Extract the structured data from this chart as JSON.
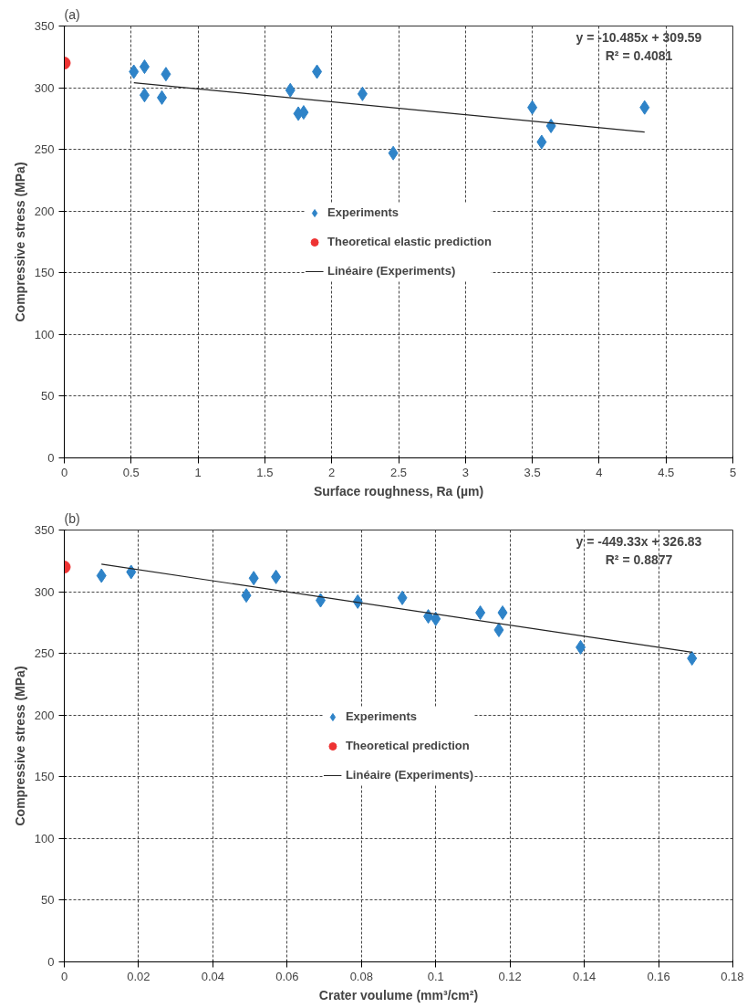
{
  "chart_data": [
    {
      "type": "scatter",
      "title": "(a)",
      "xlabel": "Surface roughness, Ra (µm)",
      "ylabel": "Compressive stress (MPa)",
      "xlim": [
        0,
        5
      ],
      "ylim": [
        0,
        350
      ],
      "xticks": [
        0,
        0.5,
        1,
        1.5,
        2,
        2.5,
        3,
        3.5,
        4,
        4.5,
        5
      ],
      "yticks": [
        0,
        50,
        100,
        150,
        200,
        250,
        300,
        350
      ],
      "grid": true,
      "legend": "center",
      "annotations": [
        "y = -10.485x + 309.59",
        "R² = 0.4081"
      ],
      "series": [
        {
          "name": "Experiments",
          "color": "#2e83c8",
          "marker": "diamond",
          "x": [
            0.52,
            0.6,
            0.6,
            0.73,
            0.76,
            1.69,
            1.75,
            1.79,
            1.89,
            2.23,
            2.46,
            3.5,
            3.57,
            3.64,
            4.34
          ],
          "values": [
            313,
            317,
            294,
            292,
            311,
            298,
            279,
            280,
            313,
            295,
            247,
            284,
            256,
            269,
            284
          ]
        },
        {
          "name": "Theoretical elastic prediction",
          "color": "#ee3333",
          "marker": "circle",
          "x": [
            0
          ],
          "values": [
            320
          ]
        },
        {
          "name": "Linéaire (Experiments)",
          "type": "line",
          "color": "#222222",
          "marker": "none",
          "x": [
            0.52,
            4.34
          ],
          "values": [
            304.1,
            264.1
          ]
        }
      ]
    },
    {
      "type": "scatter",
      "title": "(b)",
      "xlabel": "Crater voulume (mm³/cm²)",
      "ylabel": "Compressive stress (MPa)",
      "xlim": [
        0,
        0.18
      ],
      "ylim": [
        0,
        350
      ],
      "xticks": [
        0,
        0.02,
        0.04,
        0.06,
        0.08,
        0.1,
        0.12,
        0.14,
        0.16,
        0.18
      ],
      "yticks": [
        0,
        50,
        100,
        150,
        200,
        250,
        300,
        350
      ],
      "grid": true,
      "legend": "center",
      "annotations": [
        "y = -449.33x + 326.83",
        "R² = 0.8877"
      ],
      "series": [
        {
          "name": "Experiments",
          "color": "#2e83c8",
          "marker": "diamond",
          "x": [
            0.01,
            0.018,
            0.049,
            0.051,
            0.057,
            0.069,
            0.079,
            0.091,
            0.098,
            0.1,
            0.112,
            0.117,
            0.118,
            0.139,
            0.169
          ],
          "values": [
            313,
            316,
            297,
            311,
            312,
            293,
            292,
            295,
            280,
            278,
            283,
            269,
            283,
            255,
            246
          ]
        },
        {
          "name": "Theoretical prediction",
          "color": "#ee3333",
          "marker": "circle",
          "x": [
            0
          ],
          "values": [
            320
          ]
        },
        {
          "name": "Linéaire (Experiments)",
          "type": "line",
          "color": "#222222",
          "marker": "none",
          "x": [
            0.01,
            0.169
          ],
          "values": [
            322.3,
            250.9
          ]
        }
      ]
    }
  ]
}
